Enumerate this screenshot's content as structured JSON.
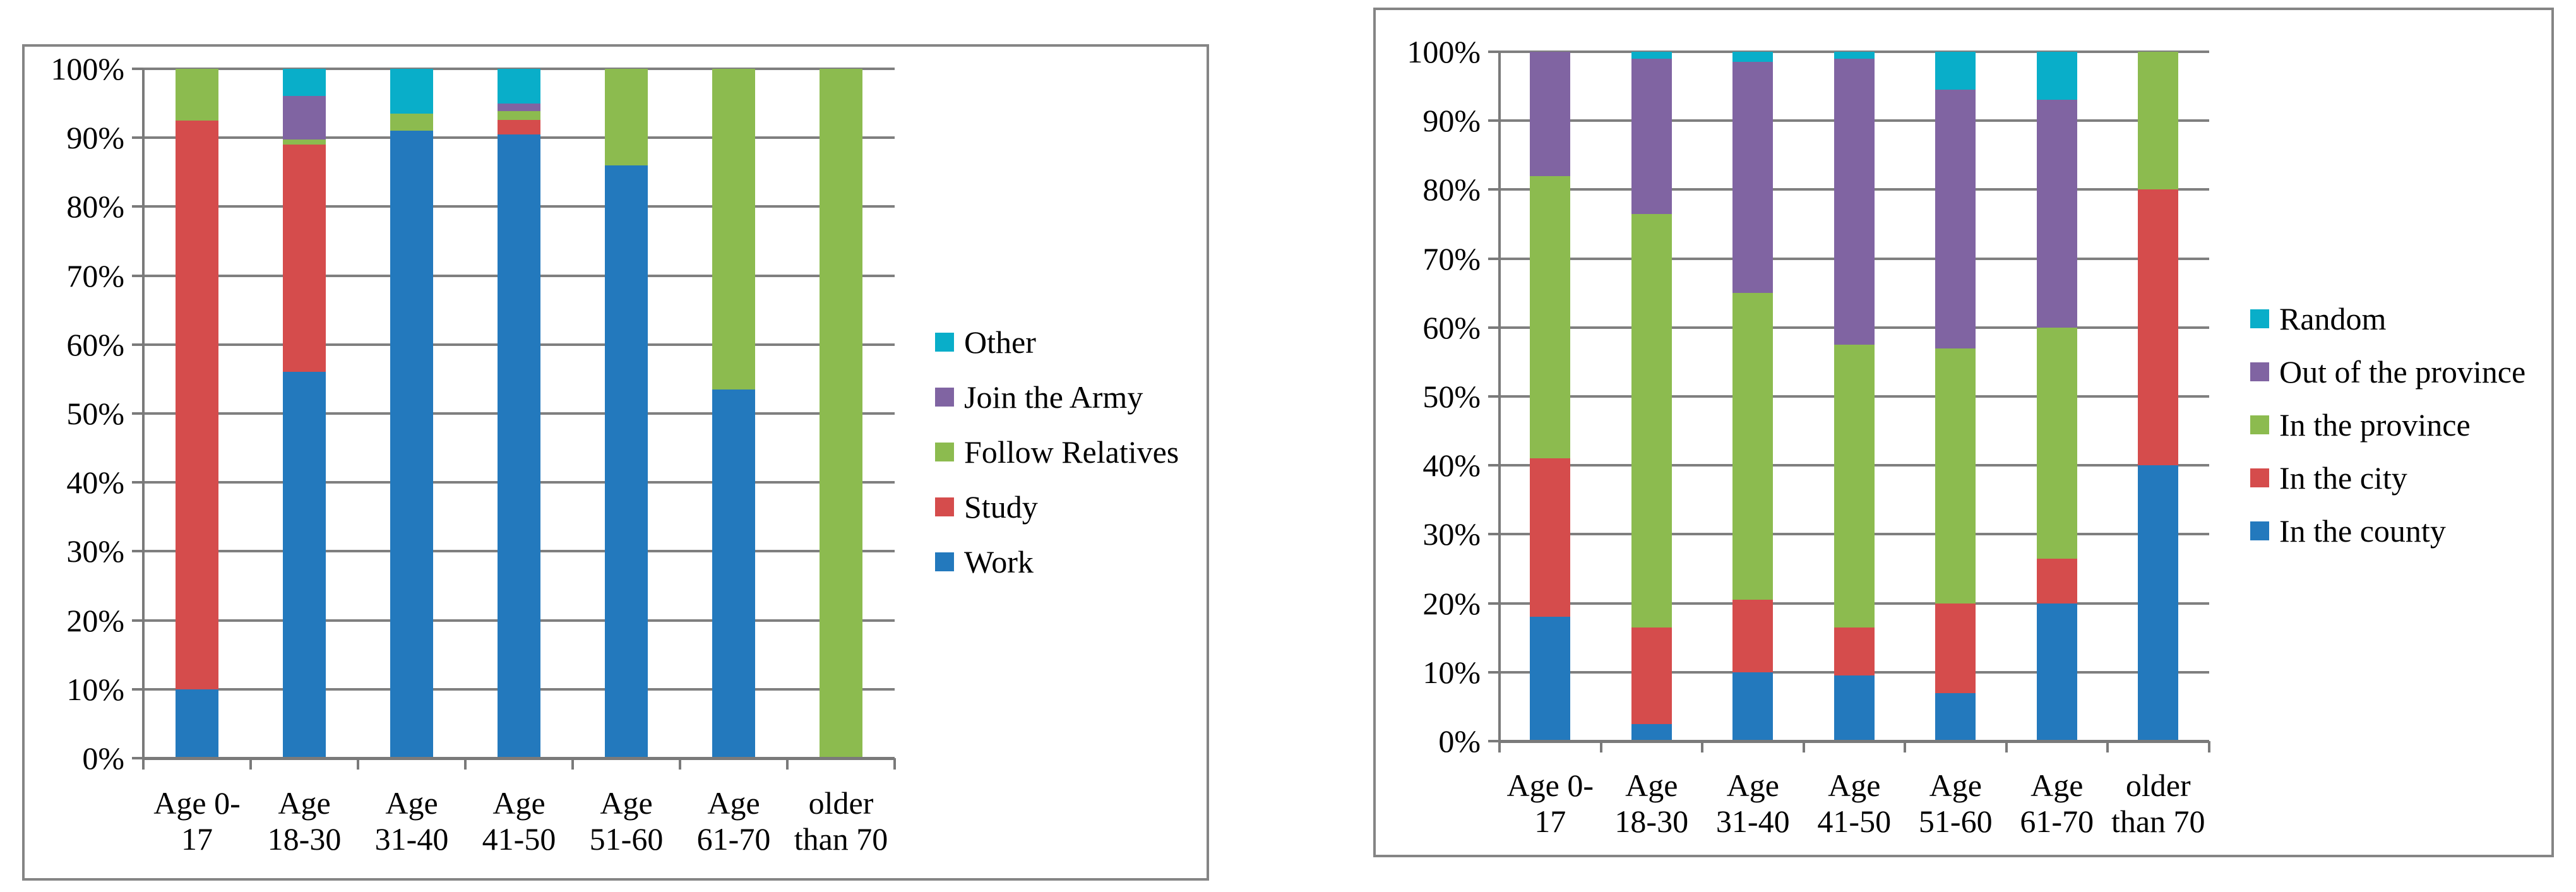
{
  "page": {
    "background_color": "#ffffff",
    "panel_border_color": "#858585",
    "gridline_color": "#7f7f7f",
    "text_color": "#000000"
  },
  "chart_data": [
    {
      "id": "migration-reasons-by-age",
      "type": "bar",
      "subtype": "100-percent-stacked-column",
      "title": "",
      "categories": [
        "Age 0-17",
        "Age 18-30",
        "Age 31-40",
        "Age 41-50",
        "Age 51-60",
        "Age 61-70",
        "older than 70"
      ],
      "category_labels": [
        [
          "Age 0-",
          "17"
        ],
        [
          "Age",
          "18-30"
        ],
        [
          "Age",
          "31-40"
        ],
        [
          "Age",
          "41-50"
        ],
        [
          "Age",
          "51-60"
        ],
        [
          "Age",
          "61-70"
        ],
        [
          "older",
          "than 70"
        ]
      ],
      "y_axis_ticks": [
        "100%",
        "90%",
        "80%",
        "70%",
        "60%",
        "50%",
        "40%",
        "30%",
        "20%",
        "10%",
        "0%"
      ],
      "ylim": [
        0,
        100
      ],
      "grid": true,
      "legend_position": "right",
      "legend_order_top_to_bottom": [
        "Other",
        "Join the Army",
        "Follow Relatives",
        "Study",
        "Work"
      ],
      "series": [
        {
          "name": "Work",
          "color": "#2379BD",
          "values": [
            10,
            56,
            91,
            90.5,
            86,
            53.5,
            0
          ]
        },
        {
          "name": "Study",
          "color": "#D54C4C",
          "values": [
            82.5,
            33,
            0,
            2.1,
            0,
            0,
            0
          ]
        },
        {
          "name": "Follow Relatives",
          "color": "#8CBB4F",
          "values": [
            7.5,
            0.7,
            2.5,
            1.3,
            14,
            46.5,
            100
          ]
        },
        {
          "name": "Join the Army",
          "color": "#8064A2",
          "values": [
            0,
            6.4,
            0,
            1.1,
            0,
            0,
            0
          ]
        },
        {
          "name": "Other",
          "color": "#09AEC9",
          "values": [
            0,
            3.9,
            6.5,
            5,
            0,
            0,
            0
          ]
        }
      ]
    },
    {
      "id": "migration-destination-by-age",
      "type": "bar",
      "subtype": "100-percent-stacked-column",
      "title": "",
      "categories": [
        "Age 0-17",
        "Age 18-30",
        "Age 31-40",
        "Age 41-50",
        "Age 51-60",
        "Age 61-70",
        "older than 70"
      ],
      "category_labels": [
        [
          "Age 0-",
          "17"
        ],
        [
          "Age",
          "18-30"
        ],
        [
          "Age",
          "31-40"
        ],
        [
          "Age",
          "41-50"
        ],
        [
          "Age",
          "51-60"
        ],
        [
          "Age",
          "61-70"
        ],
        [
          "older",
          "than 70"
        ]
      ],
      "y_axis_ticks": [
        "100%",
        "90%",
        "80%",
        "70%",
        "60%",
        "50%",
        "40%",
        "30%",
        "20%",
        "10%",
        "0%"
      ],
      "ylim": [
        0,
        100
      ],
      "grid": true,
      "legend_position": "right",
      "legend_order_top_to_bottom": [
        "Random",
        "Out of the province",
        "In the province",
        "In the city",
        "In the county"
      ],
      "series": [
        {
          "name": "In the county",
          "color": "#2379BD",
          "values": [
            18,
            2.5,
            10,
            9.5,
            7,
            20,
            40
          ]
        },
        {
          "name": "In the city",
          "color": "#D54C4C",
          "values": [
            23,
            14,
            10.5,
            7,
            13,
            6.5,
            40
          ]
        },
        {
          "name": "In the province",
          "color": "#8CBB4F",
          "values": [
            41,
            60,
            44.5,
            41,
            37,
            33.5,
            20
          ]
        },
        {
          "name": "Out of the province",
          "color": "#8064A2",
          "values": [
            18,
            22.5,
            33.5,
            41.5,
            37.5,
            33,
            0
          ]
        },
        {
          "name": "Random",
          "color": "#09AEC9",
          "values": [
            0,
            1,
            1.5,
            1,
            5.5,
            7,
            0
          ]
        }
      ]
    }
  ]
}
